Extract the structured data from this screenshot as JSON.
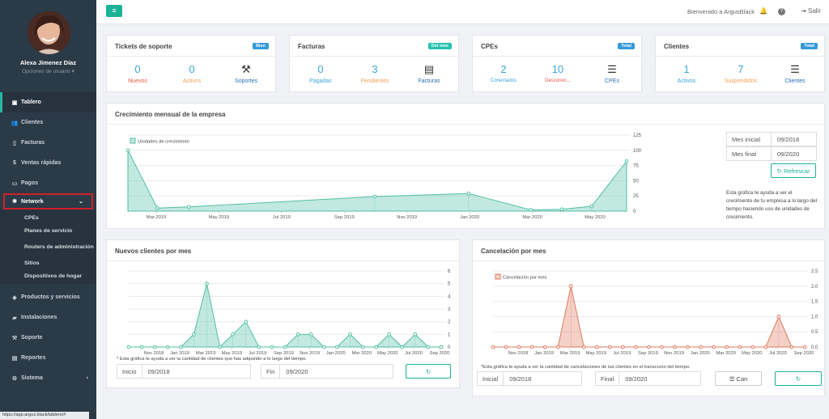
{
  "user": {
    "name": "Alexa Jimenez Díaz",
    "options": "Opciones de usuario"
  },
  "nav": {
    "items": [
      {
        "label": "Tablero",
        "icon": "dashboard-icon"
      },
      {
        "label": "Clientes",
        "icon": "users-icon"
      },
      {
        "label": "Facturas",
        "icon": "file-icon"
      },
      {
        "label": "Ventas rápidas",
        "icon": "dollar-icon"
      },
      {
        "label": "Pagos",
        "icon": "money-icon"
      },
      {
        "label": "Network",
        "icon": "gear-icon"
      },
      {
        "label": "Productos y servicios",
        "icon": "box-icon"
      },
      {
        "label": "Instalaciones",
        "icon": "truck-icon"
      },
      {
        "label": "Soporte",
        "icon": "wrench-icon"
      },
      {
        "label": "Reportes",
        "icon": "chart-icon"
      },
      {
        "label": "Sistema",
        "icon": "gears-icon"
      }
    ],
    "network_sub": [
      "CPEs",
      "Planes de servicio",
      "Routers de administración",
      "Sitios",
      "Dispositivos de hogar"
    ]
  },
  "status_url": "https://app.argus.black/tablero/#",
  "topbar": {
    "welcome": "Bienvenido a ArgusBlack",
    "logout": "Salir"
  },
  "cards": [
    {
      "title": "Tickets de soporte",
      "badge": "Bien",
      "badge_color": "#3498db",
      "stats": [
        {
          "n": "0",
          "l": "Nuevos",
          "c": "#e4574a"
        },
        {
          "n": "0",
          "l": "Activos",
          "c": "#f0a35a"
        },
        {
          "n": "",
          "l": "Soportes",
          "c": "#2c6fb2",
          "icon": "wrench-icon"
        }
      ]
    },
    {
      "title": "Facturas",
      "badge": "Del mes",
      "badge_color": "#26c0b0",
      "stats": [
        {
          "n": "0",
          "l": "Pagadas",
          "c": "#3aa6d8"
        },
        {
          "n": "3",
          "l": "Pendientes",
          "c": "#f0a35a"
        },
        {
          "n": "",
          "l": "Facturas",
          "c": "#2c6fb2",
          "icon": "document-icon"
        }
      ]
    },
    {
      "title": "CPEs",
      "badge": "Total",
      "badge_color": "#3498db",
      "stats": [
        {
          "n": "2",
          "l": "Conectados",
          "c": "#3aa6d8"
        },
        {
          "n": "10",
          "l": "Desconec...",
          "c": "#e4574a"
        },
        {
          "n": "",
          "l": "CPEs",
          "c": "#2c6fb2",
          "icon": "list-icon"
        }
      ]
    },
    {
      "title": "Clientes",
      "badge": "Total",
      "badge_color": "#3498db",
      "stats": [
        {
          "n": "1",
          "l": "Activos",
          "c": "#3aa6d8"
        },
        {
          "n": "7",
          "l": "Suspendidos",
          "c": "#f0a35a"
        },
        {
          "n": "",
          "l": "Clientes",
          "c": "#2c6fb2",
          "icon": "list-icon"
        }
      ]
    }
  ],
  "growth": {
    "title": "Crecimiento mensual de la empresa",
    "mes_inicial_label": "Mes inicial",
    "mes_inicial": "09/2018",
    "mes_final_label": "Mes final",
    "mes_final": "09/2020",
    "refresh": "Refrescar",
    "help": "Esta gráfica te ayuda a ver el crecimiento de tu empresa a lo largo del tiempo haciendo uso de unidades de crecimiento."
  },
  "newclients": {
    "title": "Nuevos clientes por mes",
    "note": "* Esta gráfica te ayuda a ver la cantidad de clientes que has adquirido a lo largo del tiempo.",
    "inicio_label": "Inicio",
    "inicio": "09/2018",
    "fin_label": "Fin",
    "fin": "09/2020"
  },
  "cancel": {
    "title": "Cancelación por mes",
    "note": "*Esta gráfica te ayuda a ver la cantidad de cancelaciones de tus clientes en el transcurso del tiempo.",
    "inicial_label": "Inicial",
    "inicial": "09/2018",
    "final_label": "Final",
    "final": "09/2020",
    "can_btn": "Can"
  },
  "colors": {
    "accent": "#1bb394",
    "teal": "#4fbfa2",
    "red": "#e07a5f"
  },
  "chart_data": [
    {
      "type": "area",
      "legend": "Unidades de crecimiento",
      "x": [
        "Feb 2019",
        "Mar 2019",
        "Apr 2019",
        "Dec 2019",
        "Feb 2020",
        "Apr 2020",
        "Jun 2020",
        "Jul 2020",
        "Sep 2020"
      ],
      "values": [
        100,
        5,
        7,
        24,
        29,
        2,
        3,
        8,
        82
      ],
      "xticks": [
        "Mar 2019",
        "May 2019",
        "Jul 2019",
        "Sep 2019",
        "Nov 2019",
        "Jan 2020",
        "Mar 2020",
        "May 2020"
      ],
      "ylim": [
        0,
        125
      ],
      "yticks": [
        0,
        25,
        50,
        75,
        100,
        125
      ]
    },
    {
      "type": "area",
      "x_count": 25,
      "values": [
        0,
        0,
        0,
        0,
        0,
        1,
        5,
        0,
        1,
        2,
        0,
        0,
        0,
        1,
        1,
        0,
        0,
        1,
        0,
        0,
        1,
        0,
        1,
        0,
        0
      ],
      "xticks": [
        "Nov 2018",
        "Jan 2019",
        "Mar 2019",
        "May 2019",
        "Jul 2019",
        "Sep 2019",
        "Nov 2019",
        "Jan 2020",
        "Mar 2020",
        "May 2020",
        "Jul 2020",
        "Sep 2020"
      ],
      "ylim": [
        0,
        6
      ],
      "yticks": [
        0,
        1,
        2,
        3,
        4,
        5,
        6
      ]
    },
    {
      "type": "area",
      "legend": "Cancelación por mes",
      "x_count": 25,
      "values": [
        0,
        0,
        0,
        0,
        0,
        0,
        2,
        0,
        0,
        0,
        0,
        0,
        0,
        0,
        0,
        0,
        0,
        0,
        0,
        0,
        0,
        0,
        1,
        0,
        0
      ],
      "xticks": [
        "Nov 2018",
        "Jan 2019",
        "Mar 2019",
        "May 2019",
        "Jul 2019",
        "Sep 2019",
        "Nov 2019",
        "Jan 2020",
        "Mar 2020",
        "May 2020",
        "Jul 2020",
        "Sep 2020"
      ],
      "ylim": [
        0,
        2.5
      ],
      "yticks": [
        "0.0",
        "0.5",
        "1.0",
        "1.5",
        "2.0",
        "2.5"
      ]
    }
  ]
}
